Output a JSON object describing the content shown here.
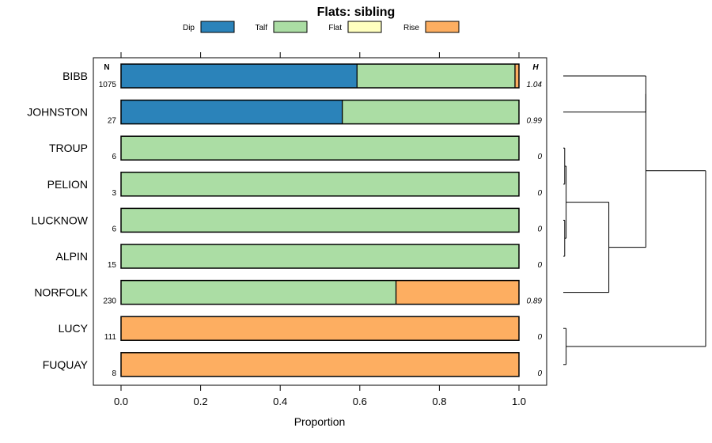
{
  "chart_data": {
    "type": "bar",
    "orientation": "horizontal",
    "stacked": true,
    "title": "Flats: sibling",
    "xlabel": "Proportion",
    "ylabel": "",
    "xlim": [
      0,
      1
    ],
    "x_ticks": [
      "0.0",
      "0.2",
      "0.4",
      "0.6",
      "0.8",
      "1.0"
    ],
    "x_tick_values": [
      0,
      0.2,
      0.4,
      0.6,
      0.8,
      1.0
    ],
    "n_header": "N",
    "h_header": "H",
    "legend": {
      "placement": "top",
      "entries": [
        {
          "name": "Dip",
          "color": "#2b83ba"
        },
        {
          "name": "Talf",
          "color": "#abdda4"
        },
        {
          "name": "Flat",
          "color": "#ffffbf"
        },
        {
          "name": "Rise",
          "color": "#fdae61"
        }
      ]
    },
    "categories": [
      "BIBB",
      "JOHNSTON",
      "TROUP",
      "PELION",
      "LUCKNOW",
      "ALPIN",
      "NORFOLK",
      "LUCY",
      "FUQUAY"
    ],
    "n": [
      "1075",
      "27",
      "6",
      "3",
      "6",
      "15",
      "230",
      "111",
      "8"
    ],
    "h": [
      "1.04",
      "0.99",
      "0",
      "0",
      "0",
      "0",
      "0.89",
      "0",
      "0"
    ],
    "series": [
      {
        "name": "Dip",
        "color": "#2b83ba",
        "values": [
          0.593,
          0.556,
          0,
          0,
          0,
          0,
          0,
          0,
          0
        ]
      },
      {
        "name": "Talf",
        "color": "#abdda4",
        "values": [
          0.397,
          0.444,
          1,
          1,
          1,
          1,
          0.691,
          0,
          0
        ]
      },
      {
        "name": "Flat",
        "color": "#ffffbf",
        "values": [
          0,
          0,
          0,
          0,
          0,
          0,
          0,
          0,
          0
        ]
      },
      {
        "name": "Rise",
        "color": "#fdae61",
        "values": [
          0.01,
          0,
          0,
          0,
          0,
          0,
          0.309,
          1,
          1
        ]
      }
    ],
    "dendrogram": {
      "tree": [
        [
          [
            0,
            1
          ],
          [
            [
              [
                2,
                3
              ],
              [
                4,
                5
              ]
            ],
            6
          ]
        ],
        [
          7,
          8
        ]
      ],
      "node_heights": {
        "root": 1.0,
        "bibb_johnston": 0.58,
        "troup_to_norfolk": 0.32,
        "troup_to_alpin": 0.02,
        "troup_pelion": 0.01,
        "lucknow_alpin": 0.01,
        "lucy_fuquay": 0.02
      }
    }
  }
}
